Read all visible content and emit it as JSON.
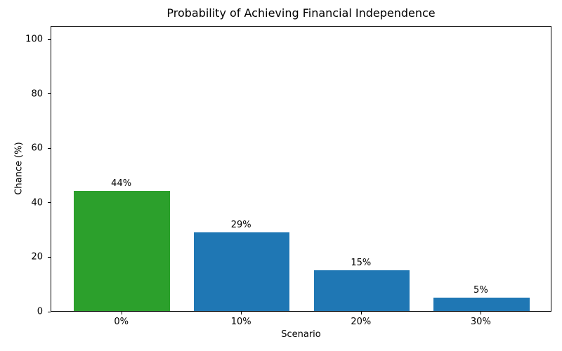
{
  "chart_data": {
    "type": "bar",
    "title": "Probability of Achieving Financial Independence",
    "xlabel": "Scenario",
    "ylabel": "Chance (%)",
    "categories": [
      "0%",
      "10%",
      "20%",
      "30%"
    ],
    "values": [
      44,
      29,
      15,
      5
    ],
    "bar_labels": [
      "44%",
      "29%",
      "15%",
      "5%"
    ],
    "bar_colors": [
      "#2ca02c",
      "#1f77b4",
      "#1f77b4",
      "#1f77b4"
    ],
    "yticks": [
      0,
      20,
      40,
      60,
      80,
      100
    ],
    "ylim": [
      0,
      105
    ],
    "grid": false,
    "legend_position": "none",
    "background_color": "#ffffff",
    "accent_green": "#2ca02c",
    "accent_blue": "#1f77b4"
  }
}
